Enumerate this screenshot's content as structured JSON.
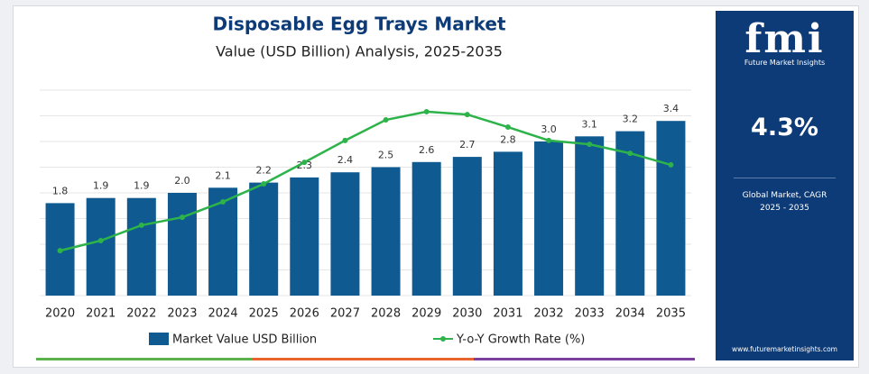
{
  "chart_data": {
    "type": "bar",
    "title": "Disposable Egg Trays Market",
    "subtitle": "Value (USD Billion) Analysis, 2025-2035",
    "categories": [
      "2020",
      "2021",
      "2022",
      "2023",
      "2024",
      "2025",
      "2026",
      "2027",
      "2028",
      "2029",
      "2030",
      "2031",
      "2032",
      "2033",
      "2034",
      "2035"
    ],
    "series": [
      {
        "name": "Market Value USD Billion",
        "color": "#0e5a91",
        "values": [
          1.8,
          1.9,
          1.9,
          2.0,
          2.1,
          2.2,
          2.3,
          2.4,
          2.5,
          2.6,
          2.7,
          2.8,
          3.0,
          3.1,
          3.2,
          3.4
        ],
        "value_labels": [
          "1.8",
          "1.9",
          "1.9",
          "2.0",
          "2.1",
          "2.2",
          "2.3",
          "2.4",
          "2.5",
          "2.6",
          "2.7",
          "2.8",
          "3.0",
          "3.1",
          "3.2",
          "3.4"
        ]
      },
      {
        "name": "Y-o-Y Growth Rate (%)",
        "type": "line",
        "axis": "y2",
        "color": "#2db34a",
        "values": [
          1.75,
          2.14,
          2.74,
          3.05,
          3.65,
          4.35,
          5.19,
          6.04,
          6.84,
          7.16,
          7.05,
          6.56,
          6.04,
          5.89,
          5.54,
          5.09
        ]
      }
    ],
    "ylim": [
      0,
      4
    ],
    "yticks": [
      0,
      0.5,
      1,
      1.5,
      2,
      2.5,
      3,
      3.5,
      4
    ],
    "y2lim": [
      0,
      8
    ],
    "grid": true
  },
  "sidebar": {
    "logo": "fmi",
    "brand": "Future Market Insights",
    "cagr": "4.3%",
    "description": "Global Market, CAGR 2025 - 2035",
    "url": "www.futuremarketinsights.com"
  }
}
